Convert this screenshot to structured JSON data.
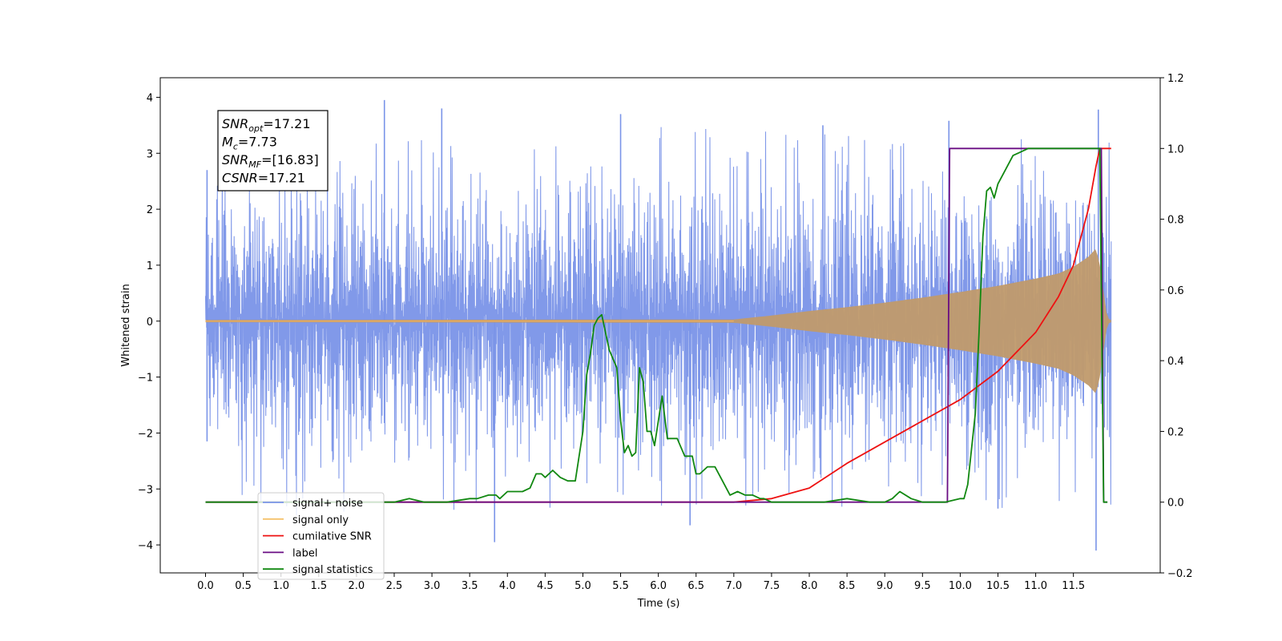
{
  "chart_data": {
    "type": "line",
    "xlabel": "Time (s)",
    "ylabel_left": "Whitened strain",
    "ylabel_right": "",
    "x_range": [
      -0.6,
      12.65
    ],
    "y_left_range": [
      -4.5,
      4.35
    ],
    "y_right_range": [
      -0.2,
      1.2
    ],
    "x_ticks": [
      0.0,
      0.5,
      1.0,
      1.5,
      2.0,
      2.5,
      3.0,
      3.5,
      4.0,
      4.5,
      5.0,
      5.5,
      6.0,
      6.5,
      7.0,
      7.5,
      8.0,
      8.5,
      9.0,
      9.5,
      10.0,
      10.5,
      11.0,
      11.5
    ],
    "x_tick_labels": [
      "0.0",
      "0.5",
      "1.0",
      "1.5",
      "2.0",
      "2.5",
      "3.0",
      "3.5",
      "4.0",
      "4.5",
      "5.0",
      "5.5",
      "6.0",
      "6.5",
      "7.0",
      "7.5",
      "8.0",
      "8.5",
      "9.0",
      "9.5",
      "10.0",
      "10.5",
      "11.0",
      "11.5"
    ],
    "y_left_ticks": [
      -4,
      -3,
      -2,
      -1,
      0,
      1,
      2,
      3,
      4
    ],
    "y_left_tick_labels": [
      "−4",
      "−3",
      "−2",
      "−1",
      "0",
      "1",
      "2",
      "3",
      "4"
    ],
    "y_right_ticks": [
      -0.2,
      0.0,
      0.2,
      0.4,
      0.6,
      0.8,
      1.0,
      1.2
    ],
    "y_right_tick_labels": [
      "−0.2",
      "0.0",
      "0.2",
      "0.4",
      "0.6",
      "0.8",
      "1.0",
      "1.2"
    ],
    "annotation": {
      "lines": [
        {
          "base": "SNR",
          "sub": "opt",
          "value": "=17.21"
        },
        {
          "base": "M",
          "sub": "c",
          "value": "=7.73"
        },
        {
          "base": "SNR",
          "sub": "MF",
          "value": "=[16.83]"
        },
        {
          "base": "CSNR",
          "sub": "",
          "value": "=17.21"
        }
      ]
    },
    "legend_position": "lower-left",
    "series": [
      {
        "name": "signal+ noise",
        "axis": "left",
        "color": "#7a94e8",
        "kind": "noise_band",
        "x_start": 0.0,
        "x_end": 12.0,
        "typical_amplitude": 1.7,
        "peaks": [
          {
            "x": 2.37,
            "y": 3.95
          },
          {
            "x": 3.13,
            "y": 3.8
          },
          {
            "x": 5.5,
            "y": 3.7
          },
          {
            "x": 11.83,
            "y": 3.78
          },
          {
            "x": 11.8,
            "y": -4.1
          },
          {
            "x": 3.83,
            "y": -3.95
          },
          {
            "x": 6.42,
            "y": -3.65
          },
          {
            "x": 10.5,
            "y": -3.35
          },
          {
            "x": 9.85,
            "y": 3.58
          },
          {
            "x": 8.18,
            "y": 3.5
          },
          {
            "x": 0.02,
            "y": -2.15
          },
          {
            "x": 0.02,
            "y": 2.7
          }
        ]
      },
      {
        "name": "signal only",
        "axis": "left",
        "color": "#c8a070",
        "kind": "chirp_envelope",
        "envelope": {
          "x": [
            0.0,
            7.0,
            7.5,
            8.0,
            8.5,
            9.0,
            9.5,
            10.0,
            10.5,
            11.0,
            11.3,
            11.5,
            11.7,
            11.8,
            11.85,
            11.95,
            12.0
          ],
          "y": [
            0.02,
            0.03,
            0.1,
            0.18,
            0.25,
            0.33,
            0.42,
            0.52,
            0.63,
            0.76,
            0.85,
            0.97,
            1.15,
            1.3,
            1.0,
            0.05,
            0.02
          ]
        }
      },
      {
        "name": "cumilative SNR",
        "axis": "right",
        "color": "#ee1111",
        "x": [
          0.0,
          7.0,
          7.5,
          8.0,
          8.5,
          9.0,
          9.5,
          10.0,
          10.5,
          11.0,
          11.3,
          11.5,
          11.7,
          11.8,
          11.85,
          12.0
        ],
        "y": [
          0.0,
          0.0,
          0.01,
          0.04,
          0.11,
          0.17,
          0.23,
          0.29,
          0.37,
          0.48,
          0.58,
          0.67,
          0.83,
          0.95,
          1.0,
          1.0
        ]
      },
      {
        "name": "label",
        "axis": "right",
        "color": "#6a0d83",
        "x": [
          0.0,
          9.83,
          9.86,
          11.87,
          11.9,
          11.95
        ],
        "y": [
          0.0,
          0.0,
          1.0,
          1.0,
          0.0,
          0.0
        ]
      },
      {
        "name": "signal statistics",
        "axis": "right",
        "color": "#118811",
        "x": [
          0.0,
          1.0,
          2.0,
          2.5,
          2.7,
          2.9,
          3.2,
          3.5,
          3.6,
          3.75,
          3.85,
          3.9,
          4.0,
          4.1,
          4.2,
          4.3,
          4.38,
          4.45,
          4.5,
          4.6,
          4.7,
          4.8,
          4.9,
          5.0,
          5.05,
          5.1,
          5.15,
          5.2,
          5.25,
          5.35,
          5.45,
          5.5,
          5.55,
          5.6,
          5.65,
          5.7,
          5.75,
          5.8,
          5.85,
          5.9,
          5.95,
          6.05,
          6.12,
          6.18,
          6.25,
          6.35,
          6.45,
          6.5,
          6.55,
          6.65,
          6.75,
          6.85,
          6.95,
          7.05,
          7.15,
          7.25,
          7.35,
          7.4,
          7.5,
          7.8,
          8.2,
          8.5,
          8.8,
          9.0,
          9.1,
          9.2,
          9.35,
          9.5,
          9.8,
          10.0,
          10.05,
          10.1,
          10.2,
          10.25,
          10.3,
          10.35,
          10.4,
          10.45,
          10.5,
          10.6,
          10.7,
          10.8,
          10.9,
          11.0,
          11.85,
          11.9,
          11.95
        ],
        "y": [
          0.0,
          0.0,
          0.0,
          0.0,
          0.01,
          0.0,
          0.0,
          0.01,
          0.01,
          0.02,
          0.02,
          0.01,
          0.03,
          0.03,
          0.03,
          0.04,
          0.08,
          0.08,
          0.07,
          0.09,
          0.07,
          0.06,
          0.06,
          0.2,
          0.36,
          0.42,
          0.5,
          0.52,
          0.53,
          0.43,
          0.38,
          0.23,
          0.14,
          0.16,
          0.13,
          0.14,
          0.38,
          0.34,
          0.2,
          0.2,
          0.16,
          0.3,
          0.18,
          0.18,
          0.18,
          0.13,
          0.13,
          0.08,
          0.08,
          0.1,
          0.1,
          0.06,
          0.02,
          0.03,
          0.02,
          0.02,
          0.01,
          0.01,
          0.0,
          0.0,
          0.0,
          0.01,
          0.0,
          0.0,
          0.01,
          0.03,
          0.01,
          0.0,
          0.0,
          0.01,
          0.01,
          0.05,
          0.25,
          0.48,
          0.75,
          0.88,
          0.89,
          0.86,
          0.9,
          0.94,
          0.98,
          0.99,
          1.0,
          1.0,
          1.0,
          0.0,
          0.0
        ]
      }
    ]
  }
}
